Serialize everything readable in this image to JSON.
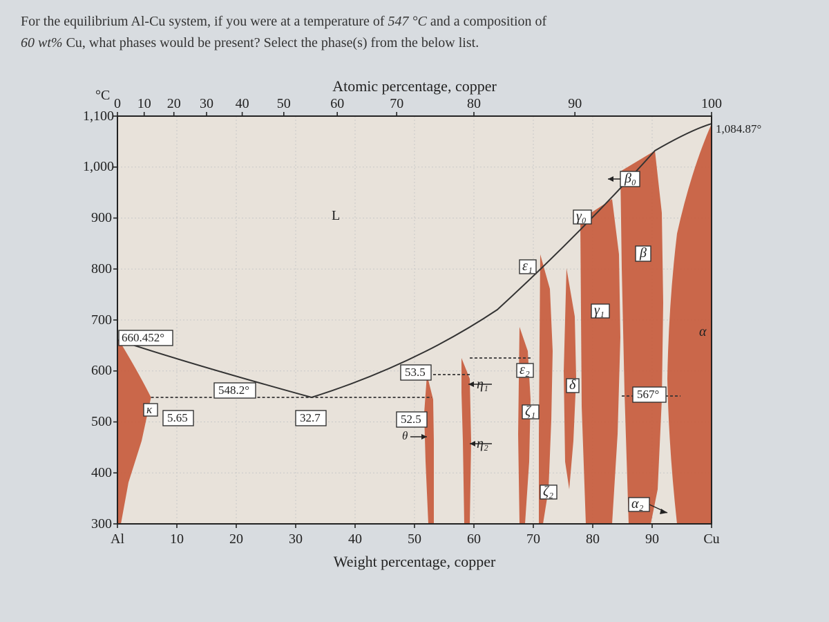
{
  "question": {
    "line1_a": "For the equilibrium Al-Cu system, if you were at a temperature of ",
    "temp": "547 °C",
    "line1_b": " and a composition of",
    "line2_a": "60 wt%",
    "line2_b": " Cu, what phases would be present?  Select the phase(s) from the below list."
  },
  "chart": {
    "type": "phase-diagram",
    "y_axis_label": "°C",
    "x_top_title": "Atomic percentage, copper",
    "x_bottom_title": "Weight percentage, copper",
    "background_color": "#e8e2da",
    "plot_border_color": "#222222",
    "grid_color": "#c8c8c8",
    "phase_region_color": "#c65a3a",
    "boundary_color": "#333333",
    "ylim": [
      300,
      1100
    ],
    "ytick_step": 100,
    "y_ticks": [
      "1,100",
      "1,000",
      "900",
      "800",
      "700",
      "600",
      "500",
      "400",
      "300"
    ],
    "x_bottom_ticks": [
      "Al",
      "10",
      "20",
      "30",
      "40",
      "50",
      "60",
      "70",
      "80",
      "90",
      "Cu"
    ],
    "x_top_ticks": [
      "0",
      "10",
      "20",
      "30",
      "40",
      "50",
      "60",
      "70",
      "80",
      "90",
      "100"
    ],
    "top_tick_positions_wt": [
      0,
      4.5,
      9.5,
      15,
      21,
      28,
      37,
      47,
      60,
      77,
      100
    ],
    "annotations": {
      "melting_al": "660.452°",
      "melting_cu": "1,084.87°",
      "eutectic_al_temp": "548.2°",
      "eutectic_al_left": "5.65",
      "eutectic_al_right": "32.7",
      "theta_comp": "52.5",
      "theta_sym": "θ",
      "peritectic_cu_temp": "567°",
      "mid_comp": "53.5",
      "L": "L",
      "kappa": "κ",
      "eta1": "η₁",
      "eta2": "η₂",
      "eps1": "ε₁",
      "eps2": "ε₂",
      "zeta1": "ζ₁",
      "zeta2": "ζ₂",
      "delta": "δ",
      "gamma0": "γ₀",
      "gamma1": "γ₁",
      "beta0": "β₀",
      "beta": "β",
      "alpha": "α",
      "alpha2": "α₂"
    }
  }
}
